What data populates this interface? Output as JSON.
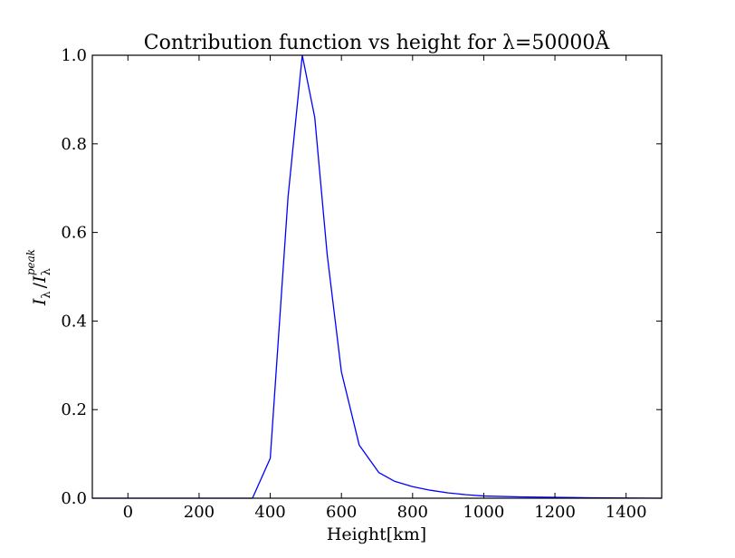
{
  "chart_data": {
    "type": "line",
    "title": "Contribution function vs height for λ=50000Å",
    "xlabel": "Height[km]",
    "ylabel": "I_λ / I_λ^peak",
    "ylabel_parts": {
      "main": "I",
      "main_sub": "λ",
      "slash": "/",
      "denom": "I",
      "denom_sub": "λ",
      "denom_sup": "peak"
    },
    "xlim": [
      -100,
      1500
    ],
    "ylim": [
      0.0,
      1.0
    ],
    "xticks": [
      0,
      200,
      400,
      600,
      800,
      1000,
      1200,
      1400
    ],
    "xtick_labels": [
      "0",
      "200",
      "400",
      "600",
      "800",
      "1000",
      "1200",
      "1400"
    ],
    "yticks": [
      0.0,
      0.2,
      0.4,
      0.6,
      0.8,
      1.0
    ],
    "ytick_labels": [
      "0.0",
      "0.2",
      "0.4",
      "0.6",
      "0.8",
      "1.0"
    ],
    "grid": false,
    "legend": "none",
    "series": [
      {
        "color": "#0000ff",
        "x": [
          -100,
          0,
          100,
          200,
          300,
          350,
          400,
          450,
          490,
          525,
          560,
          600,
          650,
          705,
          750,
          800,
          850,
          900,
          950,
          1000,
          1100,
          1200,
          1300,
          1400,
          1500
        ],
        "y": [
          0.0,
          0.0,
          0.0,
          0.0,
          0.0,
          0.0,
          0.09,
          0.68,
          1.0,
          0.86,
          0.55,
          0.285,
          0.12,
          0.058,
          0.038,
          0.026,
          0.018,
          0.012,
          0.008,
          0.005,
          0.003,
          0.002,
          0.001,
          0.0005,
          0.0
        ]
      }
    ]
  }
}
